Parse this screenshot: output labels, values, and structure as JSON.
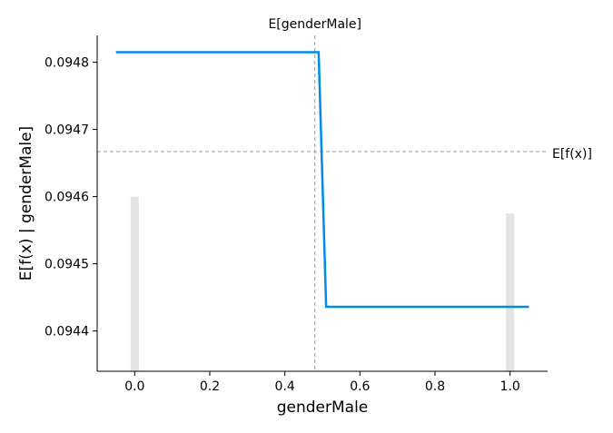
{
  "chart_data": {
    "type": "line",
    "xlabel": "genderMale",
    "ylabel": "E[f(x) | genderMale]",
    "xlim": [
      -0.1,
      1.1
    ],
    "ylim": [
      0.09434,
      0.09484
    ],
    "xticks": [
      0.0,
      0.2,
      0.4,
      0.6,
      0.8,
      1.0
    ],
    "xtick_labels": [
      "0.0",
      "0.2",
      "0.4",
      "0.6",
      "0.8",
      "1.0"
    ],
    "yticks": [
      0.0944,
      0.0945,
      0.0946,
      0.0947,
      0.0948
    ],
    "ytick_labels": [
      "0.0944",
      "0.0945",
      "0.0946",
      "0.0947",
      "0.0948"
    ],
    "grid": false,
    "series": [
      {
        "color": "#008bea",
        "x": [
          -0.05,
          0.49,
          0.51,
          1.05
        ],
        "y": [
          0.094815,
          0.094815,
          0.094436,
          0.094436
        ]
      }
    ],
    "histogram": {
      "color": "#e3e3e3",
      "bars": [
        {
          "x": 0.0,
          "height": 0.0946
        },
        {
          "x": 1.0,
          "height": 0.094575
        }
      ]
    },
    "reference_lines": [
      {
        "orientation": "vertical",
        "value": 0.48,
        "label": "E[genderMale]",
        "color": "#999999"
      },
      {
        "orientation": "horizontal",
        "value": 0.094667,
        "label": "E[f(x)]",
        "color": "#999999"
      }
    ]
  }
}
